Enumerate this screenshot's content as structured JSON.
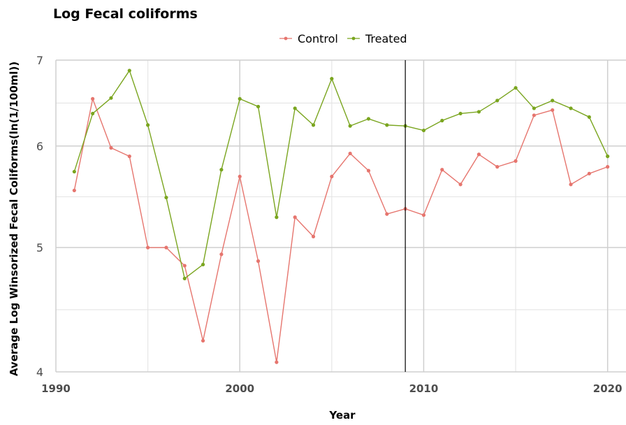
{
  "chart_data": {
    "type": "line",
    "title": "Log Fecal coliforms",
    "xlabel": "Year",
    "ylabel": "Average Log Winsorized Fecal Coliforms(ln(1/100ml))",
    "xlim": [
      1990,
      2021
    ],
    "ylim": [
      4,
      7
    ],
    "y_scale": "log",
    "x_ticks": [
      1990,
      2000,
      2010,
      2020
    ],
    "x_tick_labels": [
      "1990",
      "2000",
      "2010",
      "2020"
    ],
    "y_ticks": [
      4,
      5,
      6,
      7
    ],
    "y_tick_labels": [
      "4",
      "5",
      "6",
      "7"
    ],
    "grid": true,
    "legend_position": "top",
    "vertical_reference_line_x": 2009,
    "x": [
      1991,
      1992,
      1993,
      1994,
      1995,
      1996,
      1997,
      1998,
      1999,
      2000,
      2001,
      2002,
      2003,
      2004,
      2005,
      2006,
      2007,
      2008,
      2009,
      2010,
      2011,
      2012,
      2013,
      2014,
      2015,
      2016,
      2017,
      2018,
      2019,
      2020
    ],
    "series": [
      {
        "name": "Control",
        "color": "#e6756e",
        "values": [
          5.54,
          6.53,
          5.98,
          5.89,
          5.0,
          5.0,
          4.84,
          4.23,
          4.94,
          5.68,
          4.88,
          4.07,
          5.28,
          5.1,
          5.68,
          5.92,
          5.74,
          5.31,
          5.36,
          5.3,
          5.75,
          5.6,
          5.91,
          5.78,
          5.84,
          6.34,
          6.4,
          5.6,
          5.71,
          5.78
        ]
      },
      {
        "name": "Treated",
        "color": "#7aa51f",
        "values": [
          5.73,
          6.36,
          6.54,
          6.87,
          6.23,
          5.47,
          4.73,
          4.85,
          5.75,
          6.53,
          6.44,
          5.28,
          6.42,
          6.23,
          6.77,
          6.22,
          6.3,
          6.23,
          6.22,
          6.17,
          6.28,
          6.36,
          6.38,
          6.51,
          6.66,
          6.42,
          6.51,
          6.42,
          6.32,
          5.89
        ]
      }
    ]
  }
}
